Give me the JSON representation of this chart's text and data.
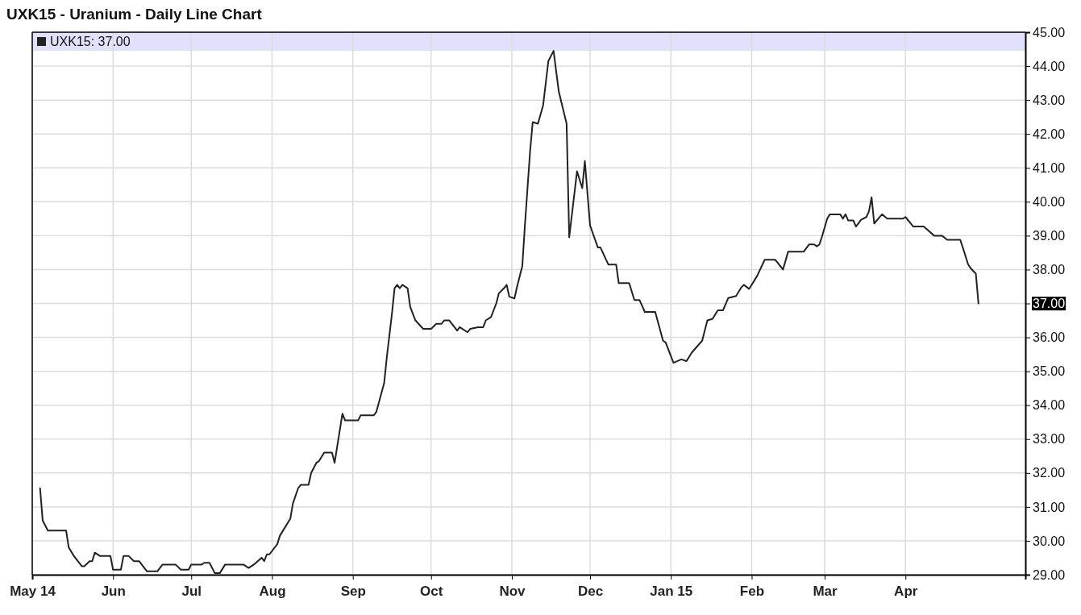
{
  "chart_data": {
    "type": "line",
    "title": "UXK15 - Uranium - Daily Line Chart",
    "xlim": [
      "2014-05-01",
      "2015-05-17"
    ],
    "xticks": [
      {
        "value": "2014-05-01",
        "label": "May 14"
      },
      {
        "value": "2014-06-01",
        "label": "Jun"
      },
      {
        "value": "2014-07-01",
        "label": "Jul"
      },
      {
        "value": "2014-08-01",
        "label": "Aug"
      },
      {
        "value": "2014-09-01",
        "label": "Sep"
      },
      {
        "value": "2014-10-01",
        "label": "Oct"
      },
      {
        "value": "2014-11-01",
        "label": "Nov"
      },
      {
        "value": "2014-12-01",
        "label": "Dec"
      },
      {
        "value": "2015-01-01",
        "label": "Jan 15"
      },
      {
        "value": "2015-02-01",
        "label": "Feb"
      },
      {
        "value": "2015-03-01",
        "label": "Mar"
      },
      {
        "value": "2015-04-01",
        "label": "Apr"
      }
    ],
    "ylim": [
      29,
      45
    ],
    "yticks": [
      {
        "value": 29,
        "label": "29.00"
      },
      {
        "value": 30,
        "label": "30.00"
      },
      {
        "value": 31,
        "label": "31.00"
      },
      {
        "value": 32,
        "label": "32.00"
      },
      {
        "value": 33,
        "label": "33.00"
      },
      {
        "value": 34,
        "label": "34.00"
      },
      {
        "value": 35,
        "label": "35.00"
      },
      {
        "value": 36,
        "label": "36.00"
      },
      {
        "value": 37,
        "label": "37.00"
      },
      {
        "value": 38,
        "label": "38.00"
      },
      {
        "value": 39,
        "label": "39.00"
      },
      {
        "value": 40,
        "label": "40.00"
      },
      {
        "value": 41,
        "label": "41.00"
      },
      {
        "value": 42,
        "label": "42.00"
      },
      {
        "value": 43,
        "label": "43.00"
      },
      {
        "value": 44,
        "label": "44.00"
      },
      {
        "value": 45,
        "label": "45.00"
      }
    ],
    "grid": true,
    "legend": "top left",
    "marker": "none",
    "line_style": "solid",
    "series": [
      {
        "name": "UXK15: 37.00",
        "color": "#222222",
        "x": [
          "2014-05-04",
          "2014-05-05",
          "2014-05-07",
          "2014-05-14",
          "2014-05-15",
          "2014-05-17",
          "2014-05-20",
          "2014-05-21",
          "2014-05-23",
          "2014-05-24",
          "2014-05-25",
          "2014-05-27",
          "2014-05-31",
          "2014-06-01",
          "2014-06-04",
          "2014-06-05",
          "2014-06-07",
          "2014-06-09",
          "2014-06-11",
          "2014-06-14",
          "2014-06-18",
          "2014-06-20",
          "2014-06-25",
          "2014-06-27",
          "2014-06-30",
          "2014-07-01",
          "2014-07-05",
          "2014-07-06",
          "2014-07-08",
          "2014-07-10",
          "2014-07-12",
          "2014-07-14",
          "2014-07-21",
          "2014-07-23",
          "2014-07-25",
          "2014-07-28",
          "2014-07-29",
          "2014-07-30",
          "2014-07-31",
          "2014-08-03",
          "2014-08-04",
          "2014-08-06",
          "2014-08-08",
          "2014-08-09",
          "2014-08-11",
          "2014-08-12",
          "2014-08-15",
          "2014-08-16",
          "2014-08-18",
          "2014-08-19",
          "2014-08-21",
          "2014-08-24",
          "2014-08-25",
          "2014-08-28",
          "2014-08-29",
          "2014-09-03",
          "2014-09-04",
          "2014-09-09",
          "2014-09-10",
          "2014-09-13",
          "2014-09-14",
          "2014-09-16",
          "2014-09-17",
          "2014-09-18",
          "2014-09-19",
          "2014-09-20",
          "2014-09-22",
          "2014-09-23",
          "2014-09-25",
          "2014-09-28",
          "2014-10-01",
          "2014-10-03",
          "2014-10-05",
          "2014-10-06",
          "2014-10-08",
          "2014-10-10",
          "2014-10-11",
          "2014-10-12",
          "2014-10-15",
          "2014-10-16",
          "2014-10-19",
          "2014-10-21",
          "2014-10-22",
          "2014-10-24",
          "2014-10-26",
          "2014-10-27",
          "2014-10-29",
          "2014-10-30",
          "2014-10-31",
          "2014-11-02",
          "2014-11-03",
          "2014-11-05",
          "2014-11-06",
          "2014-11-08",
          "2014-11-09",
          "2014-11-11",
          "2014-11-13",
          "2014-11-15",
          "2014-11-17",
          "2014-11-19",
          "2014-11-22",
          "2014-11-23",
          "2014-11-26",
          "2014-11-28",
          "2014-11-29",
          "2014-12-01",
          "2014-12-04",
          "2014-12-05",
          "2014-12-08",
          "2014-12-11",
          "2014-12-12",
          "2014-12-16",
          "2014-12-18",
          "2014-12-20",
          "2014-12-22",
          "2014-12-26",
          "2014-12-29",
          "2014-12-30",
          "2015-01-02",
          "2015-01-05",
          "2015-01-07",
          "2015-01-09",
          "2015-01-13",
          "2015-01-15",
          "2015-01-17",
          "2015-01-19",
          "2015-01-21",
          "2015-01-23",
          "2015-01-26",
          "2015-01-28",
          "2015-01-29",
          "2015-01-31",
          "2015-02-03",
          "2015-02-06",
          "2015-02-10",
          "2015-02-11",
          "2015-02-13",
          "2015-02-15",
          "2015-02-21",
          "2015-02-23",
          "2015-02-25",
          "2015-02-26",
          "2015-02-27",
          "2015-02-28",
          "2015-03-02",
          "2015-03-03",
          "2015-03-07",
          "2015-03-08",
          "2015-03-09",
          "2015-03-10",
          "2015-03-12",
          "2015-03-13",
          "2015-03-15",
          "2015-03-17",
          "2015-03-18",
          "2015-03-19",
          "2015-03-20",
          "2015-03-23",
          "2015-03-25",
          "2015-03-31",
          "2015-04-01",
          "2015-04-04",
          "2015-04-08",
          "2015-04-12",
          "2015-04-15",
          "2015-04-17",
          "2015-04-22",
          "2015-04-23",
          "2015-04-25",
          "2015-04-26",
          "2015-04-28",
          "2015-04-29"
        ],
        "values": [
          31.55,
          30.6,
          30.3,
          30.3,
          29.8,
          29.55,
          29.25,
          29.25,
          29.4,
          29.4,
          29.65,
          29.55,
          29.55,
          29.15,
          29.15,
          29.55,
          29.55,
          29.4,
          29.4,
          29.1,
          29.1,
          29.3,
          29.3,
          29.15,
          29.15,
          29.3,
          29.3,
          29.35,
          29.35,
          29.05,
          29.05,
          29.3,
          29.3,
          29.2,
          29.3,
          29.5,
          29.4,
          29.6,
          29.6,
          29.9,
          30.15,
          30.4,
          30.65,
          31.1,
          31.55,
          31.65,
          31.65,
          32.0,
          32.3,
          32.35,
          32.6,
          32.6,
          32.3,
          33.75,
          33.55,
          33.55,
          33.7,
          33.7,
          33.8,
          34.65,
          35.4,
          36.7,
          37.45,
          37.55,
          37.45,
          37.55,
          37.45,
          36.9,
          36.5,
          36.25,
          36.25,
          36.4,
          36.4,
          36.5,
          36.5,
          36.3,
          36.2,
          36.3,
          36.15,
          36.25,
          36.3,
          36.3,
          36.5,
          36.6,
          37.0,
          37.3,
          37.45,
          37.55,
          37.2,
          37.15,
          37.5,
          38.1,
          39.3,
          41.5,
          42.35,
          42.3,
          42.85,
          44.15,
          44.45,
          43.25,
          42.3,
          38.95,
          40.9,
          40.4,
          41.2,
          39.3,
          38.65,
          38.65,
          38.15,
          38.15,
          37.6,
          37.6,
          37.1,
          37.1,
          36.75,
          36.75,
          35.9,
          35.85,
          35.25,
          35.35,
          35.3,
          35.55,
          35.9,
          36.5,
          36.55,
          36.8,
          36.8,
          37.16,
          37.22,
          37.47,
          37.55,
          37.43,
          37.8,
          38.29,
          38.29,
          38.2,
          38.0,
          38.53,
          38.53,
          38.74,
          38.74,
          38.68,
          38.74,
          38.98,
          39.51,
          39.63,
          39.63,
          39.5,
          39.63,
          39.45,
          39.45,
          39.27,
          39.47,
          39.55,
          39.72,
          40.13,
          39.36,
          39.63,
          39.5,
          39.5,
          39.55,
          39.27,
          39.27,
          39.0,
          39.0,
          38.88,
          38.88,
          38.65,
          38.16,
          38.04,
          37.88,
          37.0
        ]
      }
    ]
  }
}
